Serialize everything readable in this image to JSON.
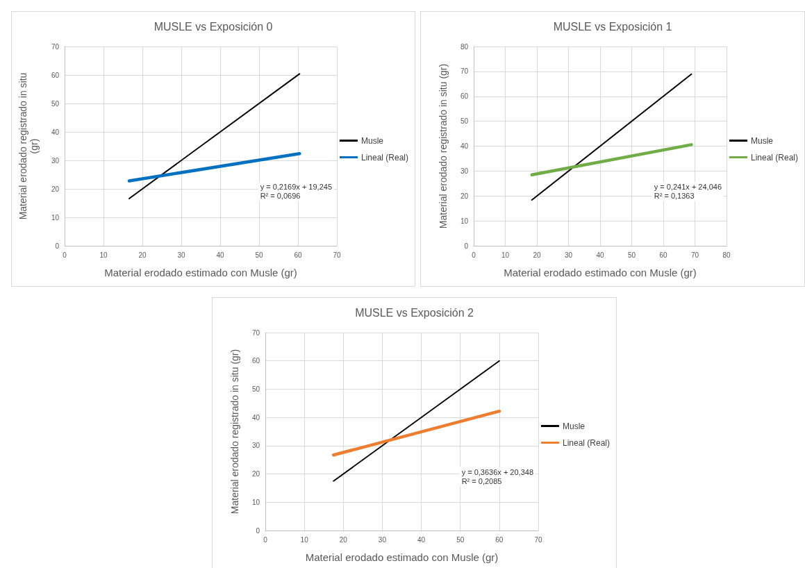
{
  "chart_data": [
    {
      "type": "line",
      "title": "MUSLE vs Exposición 0",
      "xlabel": "Material erodado estimado con Musle (gr)",
      "ylabel": "Material erodado registrado in situ\n(gr)",
      "xlim": [
        0,
        70
      ],
      "xticks": [
        0,
        10,
        20,
        30,
        40,
        50,
        60,
        70
      ],
      "ylim": [
        0,
        70
      ],
      "yticks": [
        0,
        10,
        20,
        30,
        40,
        50,
        60,
        70
      ],
      "grid": true,
      "legend": "right",
      "marker": "none",
      "line_style": "solid",
      "annotations": [
        "y = 0,2169x + 19,245\nR² = 0,0696"
      ],
      "series": [
        {
          "name": "Musle",
          "color": "#000000",
          "x": [
            16.6,
            60.4
          ],
          "values": [
            16.6,
            60.4
          ]
        },
        {
          "name": "Lineal (Real)",
          "color": "#0070c0",
          "x": [
            16.6,
            60.4
          ],
          "values": [
            22.8,
            32.4
          ]
        }
      ]
    },
    {
      "type": "line",
      "title": "MUSLE vs Exposición 1",
      "xlabel": "Material erodado estimado con Musle (gr)",
      "ylabel": "Material erodado registrado in situ (gr)",
      "xlim": [
        0,
        80
      ],
      "xticks": [
        0,
        10,
        20,
        30,
        40,
        50,
        60,
        70,
        80
      ],
      "ylim": [
        0,
        80
      ],
      "yticks": [
        0,
        10,
        20,
        30,
        40,
        50,
        60,
        70,
        80
      ],
      "grid": true,
      "legend": "right",
      "marker": "none",
      "line_style": "solid",
      "annotations": [
        "y = 0,241x + 24,046\nR² = 0,1363"
      ],
      "series": [
        {
          "name": "Musle",
          "color": "#000000",
          "x": [
            18.4,
            68.9
          ],
          "values": [
            18.4,
            68.9
          ]
        },
        {
          "name": "Lineal (Real)",
          "color": "#70ad47",
          "x": [
            18.4,
            68.9
          ],
          "values": [
            28.5,
            40.6
          ]
        }
      ]
    },
    {
      "type": "line",
      "title": "MUSLE vs Exposición 2",
      "xlabel": "Material erodado estimado con Musle (gr)",
      "ylabel": "Material erodado registrado in situ (gr)",
      "xlim": [
        0,
        70
      ],
      "xticks": [
        0,
        10,
        20,
        30,
        40,
        50,
        60,
        70
      ],
      "ylim": [
        0,
        70
      ],
      "yticks": [
        0,
        10,
        20,
        30,
        40,
        50,
        60,
        70
      ],
      "grid": true,
      "legend": "right",
      "marker": "none",
      "line_style": "solid",
      "annotations": [
        "y = 0,3636x + 20,348\nR² = 0,2085"
      ],
      "series": [
        {
          "name": "Musle",
          "color": "#000000",
          "x": [
            17.5,
            60
          ],
          "values": [
            17.5,
            60
          ]
        },
        {
          "name": "Lineal (Real)",
          "color": "#ed7d31",
          "x": [
            17.5,
            60
          ],
          "values": [
            26.7,
            42.2
          ]
        }
      ]
    }
  ]
}
